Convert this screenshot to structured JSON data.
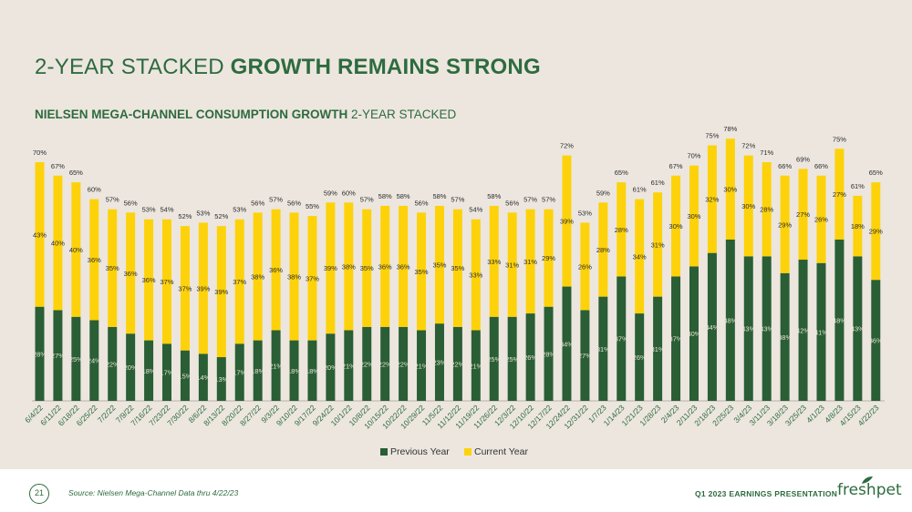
{
  "slide": {
    "title_light": "2-YEAR STACKED",
    "title_bold": "GROWTH REMAINS STRONG",
    "subtitle_bold": "NIELSEN MEGA-CHANNEL CONSUMPTION GROWTH",
    "subtitle_light": "2-YEAR STACKED",
    "page_number": "21",
    "source": "Source:  Nielsen Mega-Channel Data thru 4/22/23",
    "presentation": "Q1 2023 EARNINGS PRESENTATION",
    "logo_text": "freshpet"
  },
  "colors": {
    "previous_year": "#2a5e35",
    "current_year": "#fdd20a",
    "text": "#2e6b3e",
    "background": "#ece6df"
  },
  "chart_data": {
    "type": "bar",
    "stacked": true,
    "title": "NIELSEN MEGA-CHANNEL CONSUMPTION GROWTH 2-YEAR STACKED",
    "xlabel": "",
    "ylabel": "",
    "ylim": [
      0,
      80
    ],
    "legend_position": "bottom",
    "categories": [
      "6/4/22",
      "6/11/22",
      "6/18/22",
      "6/25/22",
      "7/2/22",
      "7/9/22",
      "7/16/22",
      "7/23/22",
      "7/30/22",
      "8/6/22",
      "8/13/22",
      "8/20/22",
      "8/27/22",
      "9/3/22",
      "9/10/22",
      "9/17/22",
      "9/24/22",
      "10/1/22",
      "10/8/22",
      "10/15/22",
      "10/22/22",
      "10/29/22",
      "11/5/22",
      "11/12/22",
      "11/19/22",
      "11/26/22",
      "12/3/22",
      "12/10/22",
      "12/17/22",
      "12/24/22",
      "12/31/22",
      "1/7/23",
      "1/14/23",
      "1/21/23",
      "1/28/23",
      "2/4/23",
      "2/11/23",
      "2/18/23",
      "2/25/23",
      "3/4/23",
      "3/11/23",
      "3/18/23",
      "3/25/23",
      "4/1/23",
      "4/8/23",
      "4/15/23",
      "4/22/23"
    ],
    "series": [
      {
        "name": "Previous Year",
        "values": [
          28,
          27,
          25,
          24,
          22,
          20,
          18,
          17,
          15,
          14,
          13,
          17,
          18,
          21,
          18,
          18,
          20,
          21,
          22,
          22,
          22,
          21,
          23,
          22,
          21,
          25,
          25,
          26,
          28,
          34,
          27,
          31,
          37,
          26,
          31,
          37,
          40,
          44,
          48,
          43,
          43,
          38,
          42,
          41,
          48,
          43,
          36
        ]
      },
      {
        "name": "Current Year",
        "values": [
          43,
          40,
          40,
          36,
          35,
          36,
          36,
          37,
          37,
          39,
          39,
          37,
          38,
          36,
          38,
          37,
          39,
          38,
          35,
          36,
          36,
          35,
          35,
          35,
          33,
          33,
          31,
          31,
          29,
          39,
          26,
          28,
          28,
          34,
          31,
          30,
          30,
          32,
          30,
          30,
          28,
          29,
          27,
          26,
          27,
          18,
          29
        ]
      }
    ],
    "totals": [
      70,
      67,
      65,
      60,
      57,
      56,
      53,
      54,
      52,
      53,
      52,
      53,
      56,
      57,
      56,
      55,
      59,
      60,
      57,
      58,
      58,
      56,
      58,
      57,
      54,
      58,
      56,
      57,
      57,
      72,
      53,
      59,
      65,
      61,
      61,
      67,
      70,
      75,
      78,
      72,
      71,
      66,
      69,
      66,
      75,
      61,
      65
    ]
  }
}
